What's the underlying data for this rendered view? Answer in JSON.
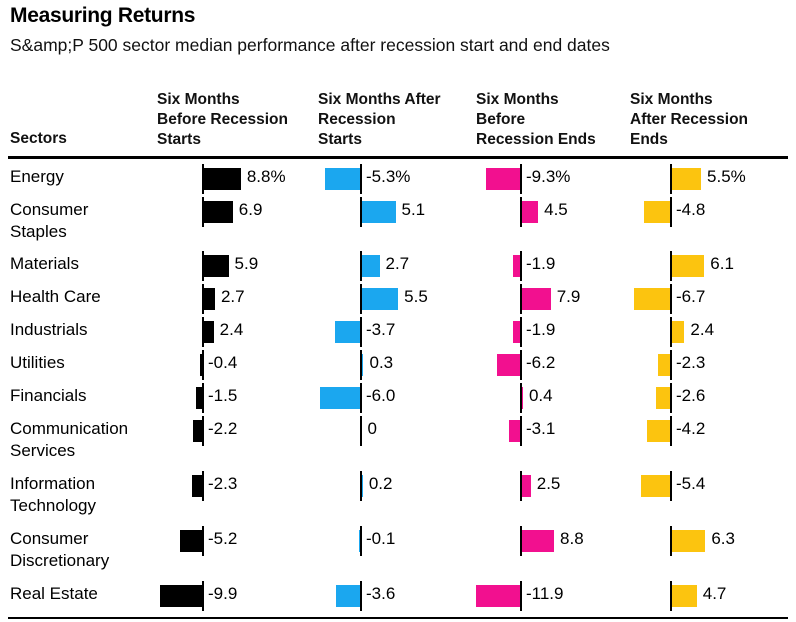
{
  "title": "Measuring Returns",
  "subtitle": "S&amp;P 500 sector median performance after recession start and end dates",
  "table": {
    "sectors_header": "Sectors",
    "column_headers": [
      {
        "lines": [
          "Six Months",
          "Before Recession",
          "Starts"
        ]
      },
      {
        "lines": [
          "Six Months After",
          "Recession",
          "Starts"
        ]
      },
      {
        "lines": [
          "Six Months",
          "Before",
          "Recession Ends"
        ]
      },
      {
        "lines": [
          "Six Months",
          "After Recession",
          "Ends"
        ]
      }
    ]
  },
  "colors": {
    "before_recession_starts": "#000000",
    "after_recession_starts": "#1BA7EF",
    "before_recession_ends": "#F2108F",
    "after_recession_ends": "#FCC40F"
  },
  "chart_data": {
    "type": "bar",
    "orientation": "horizontal",
    "unit": "%",
    "title": "Measuring Returns",
    "subtitle": "S&amp;P 500 sector median performance after recession start and end dates",
    "series": [
      {
        "name": "Six Months Before Recession Starts",
        "color": "#000000"
      },
      {
        "name": "Six Months After Recession Starts",
        "color": "#1BA7EF"
      },
      {
        "name": "Six Months Before Recession Ends",
        "color": "#F2108F"
      },
      {
        "name": "Six Months After Recession Ends",
        "color": "#FCC40F"
      }
    ],
    "rows": [
      {
        "sector": "Energy",
        "label_lines": [
          "Energy"
        ],
        "values": [
          8.8,
          -5.3,
          -9.3,
          5.5
        ],
        "display": [
          "8.8%",
          "-5.3%",
          "-9.3%",
          "5.5%"
        ]
      },
      {
        "sector": "Consumer Staples",
        "label_lines": [
          "Consumer",
          "Staples"
        ],
        "values": [
          6.9,
          5.1,
          4.5,
          -4.8
        ],
        "display": [
          "6.9",
          "5.1",
          "4.5",
          "-4.8"
        ]
      },
      {
        "sector": "Materials",
        "label_lines": [
          "Materials"
        ],
        "values": [
          5.9,
          2.7,
          -1.9,
          6.1
        ],
        "display": [
          "5.9",
          "2.7",
          "-1.9",
          "6.1"
        ]
      },
      {
        "sector": "Health Care",
        "label_lines": [
          "Health Care"
        ],
        "values": [
          2.7,
          5.5,
          7.9,
          -6.7
        ],
        "display": [
          "2.7",
          "5.5",
          "7.9",
          "-6.7"
        ]
      },
      {
        "sector": "Industrials",
        "label_lines": [
          "Industrials"
        ],
        "values": [
          2.4,
          -3.7,
          -1.9,
          2.4
        ],
        "display": [
          "2.4",
          "-3.7",
          "-1.9",
          "2.4"
        ]
      },
      {
        "sector": "Utilities",
        "label_lines": [
          "Utilities"
        ],
        "values": [
          -0.4,
          0.3,
          -6.2,
          -2.3
        ],
        "display": [
          "-0.4",
          "0.3",
          "-6.2",
          "-2.3"
        ]
      },
      {
        "sector": "Financials",
        "label_lines": [
          "Financials"
        ],
        "values": [
          -1.5,
          -6.0,
          0.4,
          -2.6
        ],
        "display": [
          "-1.5",
          "-6.0",
          "0.4",
          "-2.6"
        ]
      },
      {
        "sector": "Communication Services",
        "label_lines": [
          "Communication",
          "Services"
        ],
        "values": [
          -2.2,
          0,
          -3.1,
          -4.2
        ],
        "display": [
          "-2.2",
          "0",
          "-3.1",
          "-4.2"
        ]
      },
      {
        "sector": "Information Technology",
        "label_lines": [
          "Information",
          "Technology"
        ],
        "values": [
          -2.3,
          0.2,
          2.5,
          -5.4
        ],
        "display": [
          "-2.3",
          "0.2",
          "2.5",
          "-5.4"
        ]
      },
      {
        "sector": "Consumer Discretionary",
        "label_lines": [
          "Consumer",
          "Discretionary"
        ],
        "values": [
          -5.2,
          -0.1,
          8.8,
          6.3
        ],
        "display": [
          "-5.2",
          "-0.1",
          "8.8",
          "6.3"
        ]
      },
      {
        "sector": "Real Estate",
        "label_lines": [
          "Real Estate"
        ],
        "values": [
          -9.9,
          -3.6,
          -11.9,
          4.7
        ],
        "display": [
          "-9.9",
          "-3.6",
          "-11.9",
          "4.7"
        ]
      }
    ]
  }
}
